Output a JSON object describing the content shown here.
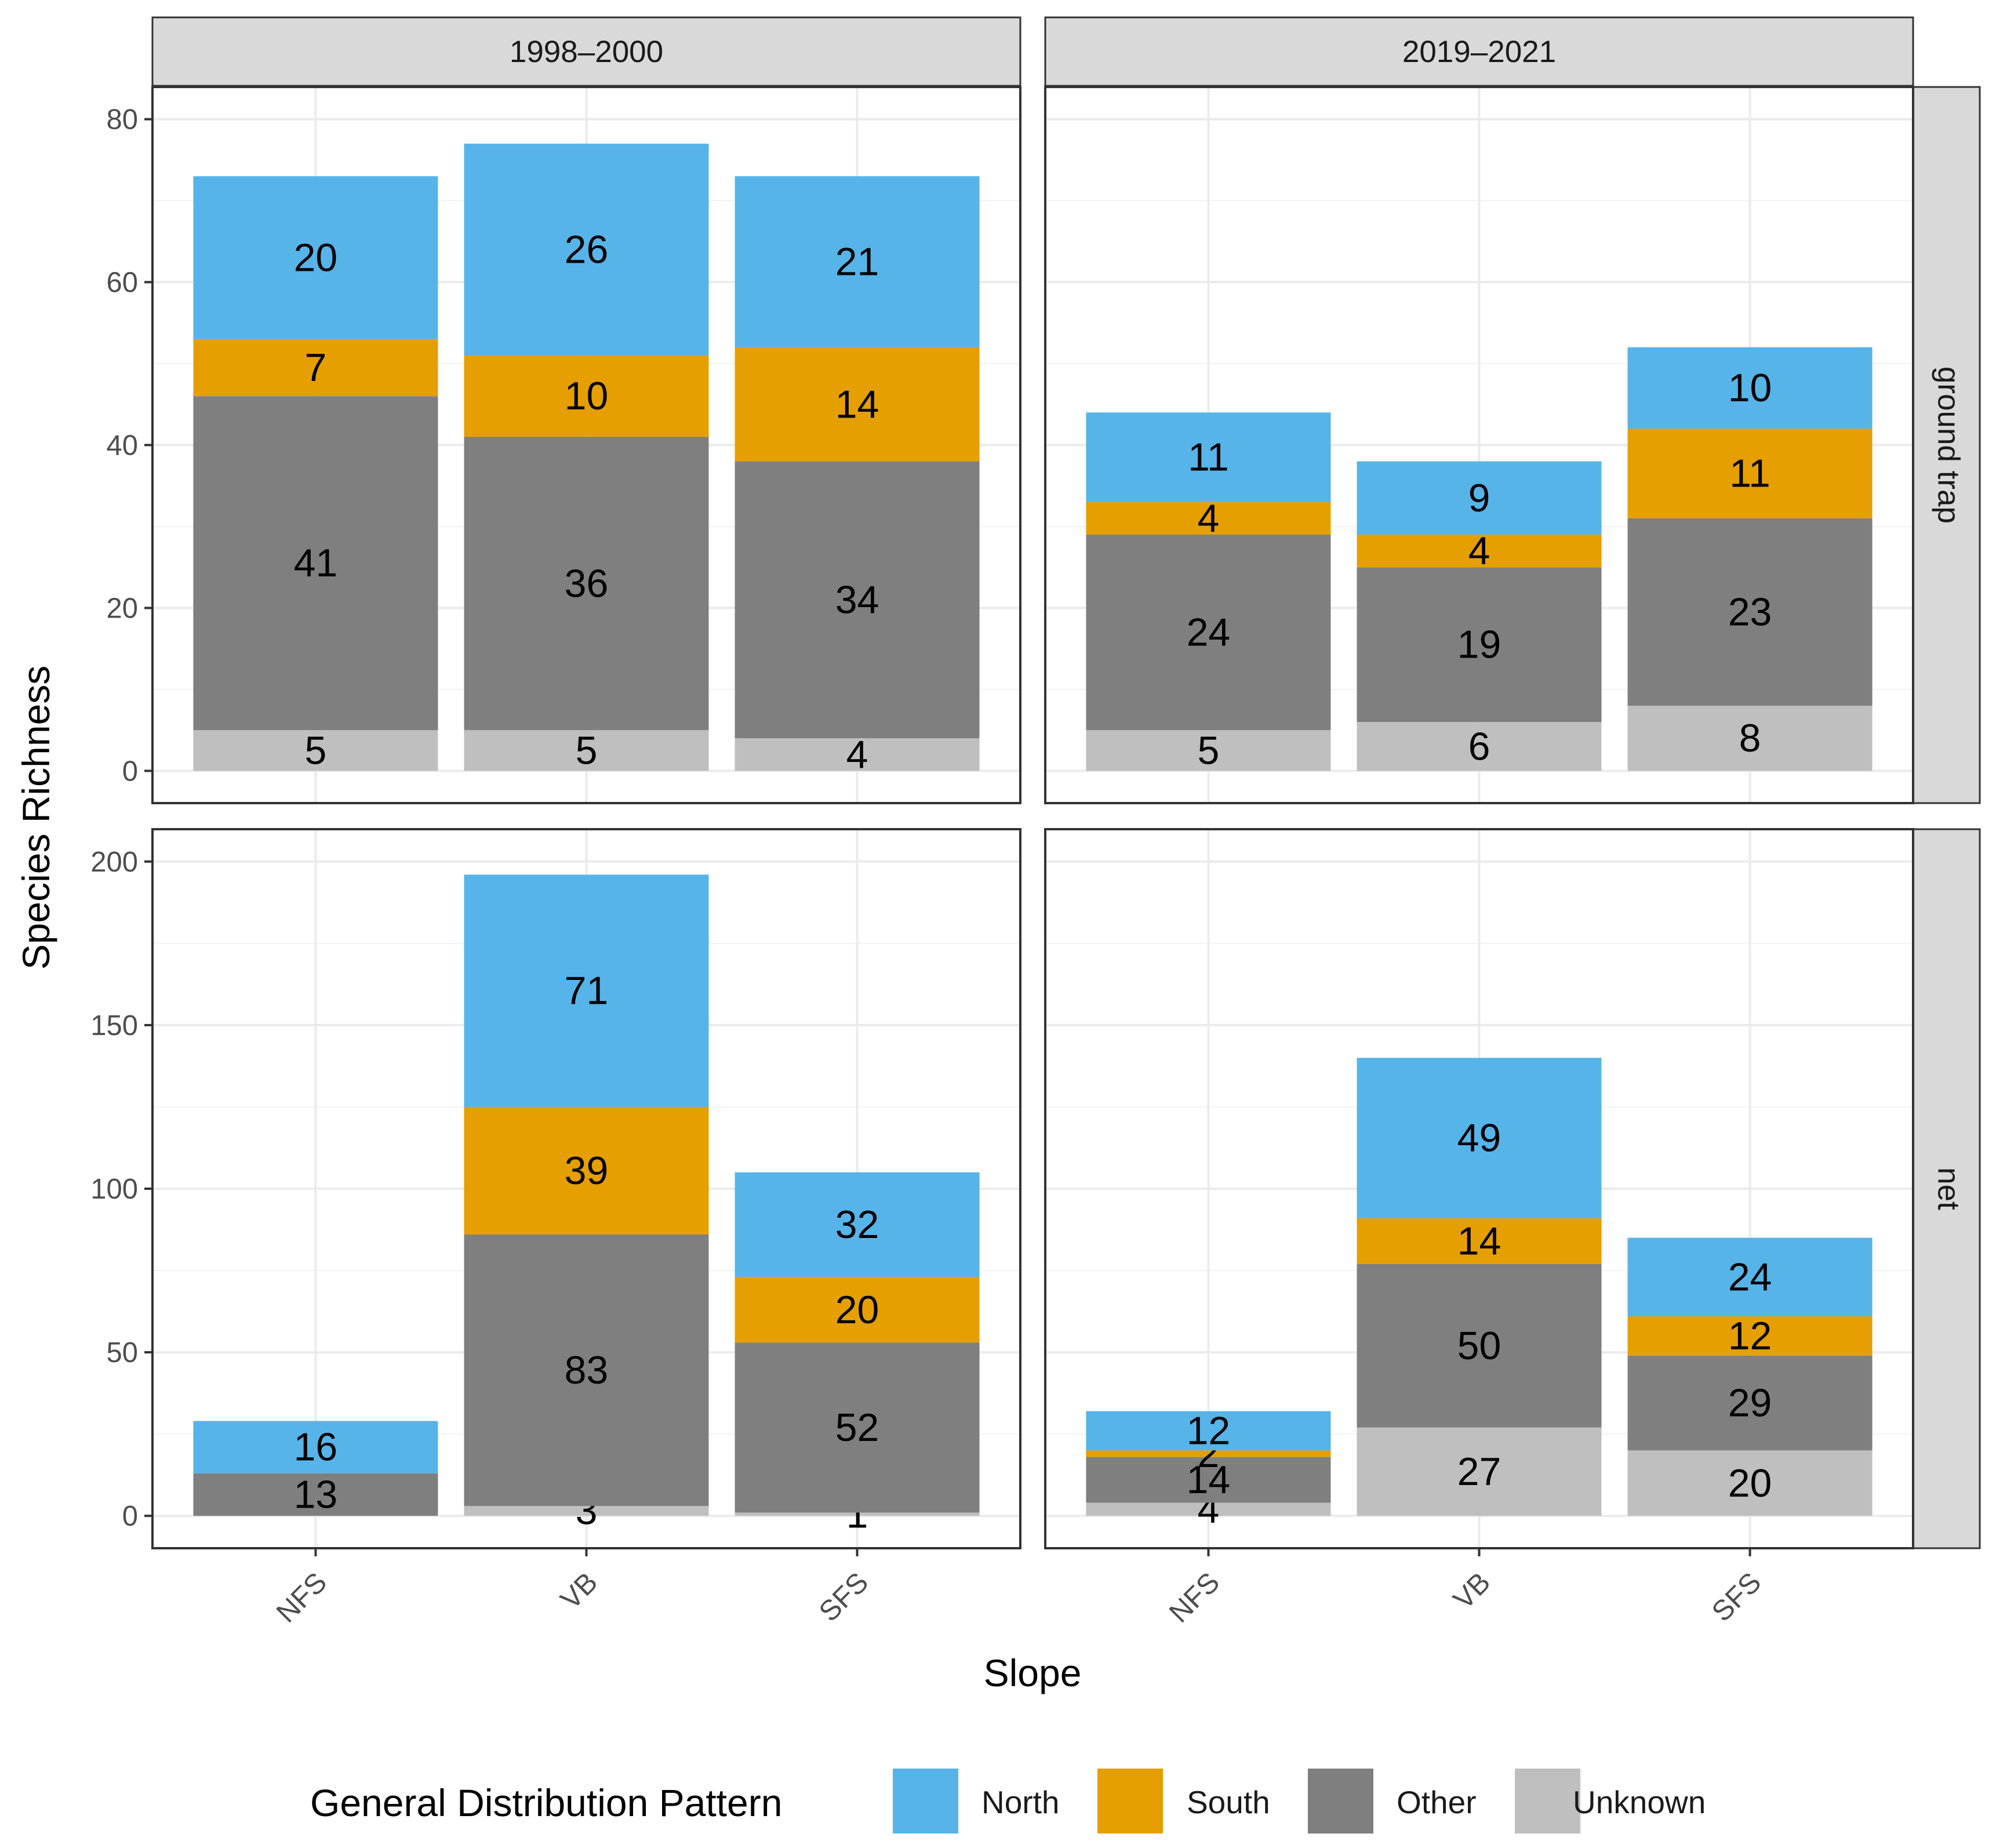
{
  "chart_data": {
    "type": "bar",
    "stacked": true,
    "faceted": true,
    "ylabel": "Species Richness",
    "xlabel": "Slope",
    "categories": [
      "NFS",
      "VB",
      "SFS"
    ],
    "column_facets": [
      "1998–2000",
      "2019–2021"
    ],
    "row_facets": [
      "ground trap",
      "net"
    ],
    "legend": {
      "title": "General Distribution Pattern",
      "position": "bottom",
      "entries": [
        {
          "name": "North",
          "color": "#56B4E9"
        },
        {
          "name": "South",
          "color": "#E69F00"
        },
        {
          "name": "Other",
          "color": "#7F7F7F"
        },
        {
          "name": "Unknown",
          "color": "#BFBFBF"
        }
      ]
    },
    "stack_order_bottom_to_top": [
      "Unknown",
      "Other",
      "South",
      "North"
    ],
    "rows": [
      {
        "name": "ground trap",
        "ylim": [
          0,
          80
        ],
        "yticks": [
          0,
          20,
          40,
          60,
          80
        ],
        "panels": [
          {
            "period": "1998–2000",
            "series": [
              {
                "name": "Unknown",
                "values": [
                  5,
                  5,
                  4
                ]
              },
              {
                "name": "Other",
                "values": [
                  41,
                  36,
                  34
                ]
              },
              {
                "name": "South",
                "values": [
                  7,
                  10,
                  14
                ]
              },
              {
                "name": "North",
                "values": [
                  20,
                  26,
                  21
                ]
              }
            ]
          },
          {
            "period": "2019–2021",
            "series": [
              {
                "name": "Unknown",
                "values": [
                  5,
                  6,
                  8
                ]
              },
              {
                "name": "Other",
                "values": [
                  24,
                  19,
                  23
                ]
              },
              {
                "name": "South",
                "values": [
                  4,
                  4,
                  11
                ]
              },
              {
                "name": "North",
                "values": [
                  11,
                  9,
                  10
                ]
              }
            ]
          }
        ]
      },
      {
        "name": "net",
        "ylim": [
          0,
          200
        ],
        "yticks": [
          0,
          50,
          100,
          150,
          200
        ],
        "panels": [
          {
            "period": "1998–2000",
            "series": [
              {
                "name": "Unknown",
                "values": [
                  0,
                  3,
                  1
                ]
              },
              {
                "name": "Other",
                "values": [
                  13,
                  83,
                  52
                ]
              },
              {
                "name": "South",
                "values": [
                  0,
                  39,
                  20
                ]
              },
              {
                "name": "North",
                "values": [
                  16,
                  71,
                  32
                ]
              }
            ]
          },
          {
            "period": "2019–2021",
            "series": [
              {
                "name": "Unknown",
                "values": [
                  4,
                  27,
                  20
                ]
              },
              {
                "name": "Other",
                "values": [
                  14,
                  50,
                  29
                ]
              },
              {
                "name": "South",
                "values": [
                  2,
                  14,
                  12
                ]
              },
              {
                "name": "North",
                "values": [
                  12,
                  49,
                  24
                ]
              }
            ]
          }
        ]
      }
    ]
  }
}
